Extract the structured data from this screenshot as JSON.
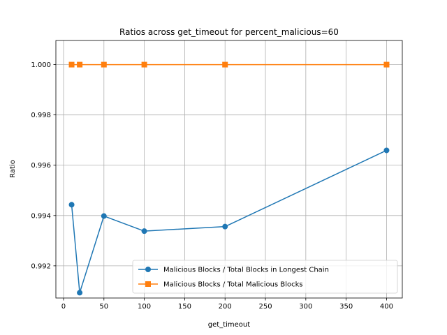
{
  "chart_data": {
    "type": "line",
    "title": "Ratios across get_timeout for percent_malicious=60",
    "xlabel": "get_timeout",
    "ylabel": "Ratio",
    "xlim": [
      -9.5,
      419.5
    ],
    "ylim": [
      0.99072,
      1.00096
    ],
    "xticks": [
      0,
      50,
      100,
      150,
      200,
      250,
      300,
      350,
      400
    ],
    "yticks": [
      0.992,
      0.994,
      0.996,
      0.998,
      1.0
    ],
    "ytick_labels": [
      "0.992",
      "0.994",
      "0.996",
      "0.998",
      "1.000"
    ],
    "grid": true,
    "legend_position": "lower-right",
    "x": [
      10,
      20,
      50,
      100,
      200,
      400
    ],
    "series": [
      {
        "name": "Malicious Blocks / Total Blocks in Longest Chain",
        "values": [
          0.99443,
          0.99093,
          0.99398,
          0.99338,
          0.99356,
          0.99659
        ],
        "color": "#1f77b4",
        "marker": "circle"
      },
      {
        "name": "Malicious Blocks / Total Malicious Blocks",
        "values": [
          1.0,
          1.0,
          1.0,
          1.0,
          1.0,
          1.0
        ],
        "color": "#ff7f0e",
        "marker": "square"
      }
    ]
  }
}
